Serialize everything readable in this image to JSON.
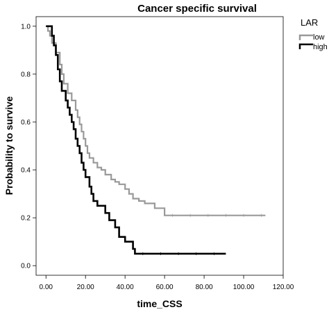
{
  "chart_data": {
    "type": "line",
    "step": true,
    "title": "Cancer specific survival",
    "xlabel": "time_CSS",
    "ylabel": "Probability to survive",
    "xlim": [
      -5,
      120
    ],
    "ylim": [
      -0.04,
      1.04
    ],
    "x_ticks": [
      0,
      20,
      40,
      60,
      80,
      100,
      120
    ],
    "x_tick_labels": [
      "0.00",
      "20.00",
      "40.00",
      "60.00",
      "80.00",
      "100.00",
      "120.00"
    ],
    "y_ticks": [
      0,
      0.2,
      0.4,
      0.6,
      0.8,
      1.0
    ],
    "y_tick_labels": [
      "0.0",
      "0.2",
      "0.4",
      "0.6",
      "0.8",
      "1.0"
    ],
    "grid": false,
    "legend": {
      "title": "LAR",
      "placement": "top-right"
    },
    "series": [
      {
        "name": "low",
        "color": "#999999",
        "points": [
          [
            0,
            1.0
          ],
          [
            1,
            0.98
          ],
          [
            2,
            0.96
          ],
          [
            3,
            0.93
          ],
          [
            5,
            0.89
          ],
          [
            7,
            0.84
          ],
          [
            8,
            0.8
          ],
          [
            9,
            0.76
          ],
          [
            11,
            0.72
          ],
          [
            13,
            0.69
          ],
          [
            15,
            0.65
          ],
          [
            16,
            0.62
          ],
          [
            17,
            0.59
          ],
          [
            18,
            0.56
          ],
          [
            19,
            0.53
          ],
          [
            20,
            0.5
          ],
          [
            21,
            0.47
          ],
          [
            22,
            0.45
          ],
          [
            24,
            0.43
          ],
          [
            26,
            0.41
          ],
          [
            28,
            0.4
          ],
          [
            30,
            0.38
          ],
          [
            33,
            0.36
          ],
          [
            35,
            0.35
          ],
          [
            37,
            0.34
          ],
          [
            40,
            0.32
          ],
          [
            42,
            0.3
          ],
          [
            44,
            0.28
          ],
          [
            47,
            0.27
          ],
          [
            50,
            0.26
          ],
          [
            55,
            0.24
          ],
          [
            60,
            0.21
          ],
          [
            111,
            0.21
          ]
        ]
      },
      {
        "name": "high",
        "color": "#000000",
        "points": [
          [
            0,
            1.0
          ],
          [
            3,
            0.96
          ],
          [
            4,
            0.92
          ],
          [
            5,
            0.88
          ],
          [
            6,
            0.82
          ],
          [
            7,
            0.77
          ],
          [
            8,
            0.73
          ],
          [
            10,
            0.69
          ],
          [
            11,
            0.66
          ],
          [
            12,
            0.63
          ],
          [
            13,
            0.6
          ],
          [
            14,
            0.57
          ],
          [
            15,
            0.53
          ],
          [
            16,
            0.5
          ],
          [
            17,
            0.47
          ],
          [
            18,
            0.43
          ],
          [
            19,
            0.4
          ],
          [
            20,
            0.37
          ],
          [
            22,
            0.33
          ],
          [
            23,
            0.3
          ],
          [
            24,
            0.27
          ],
          [
            26,
            0.25
          ],
          [
            30,
            0.22
          ],
          [
            32,
            0.19
          ],
          [
            35,
            0.16
          ],
          [
            37,
            0.12
          ],
          [
            40,
            0.1
          ],
          [
            44,
            0.07
          ],
          [
            45,
            0.05
          ],
          [
            91,
            0.05
          ]
        ]
      }
    ]
  }
}
